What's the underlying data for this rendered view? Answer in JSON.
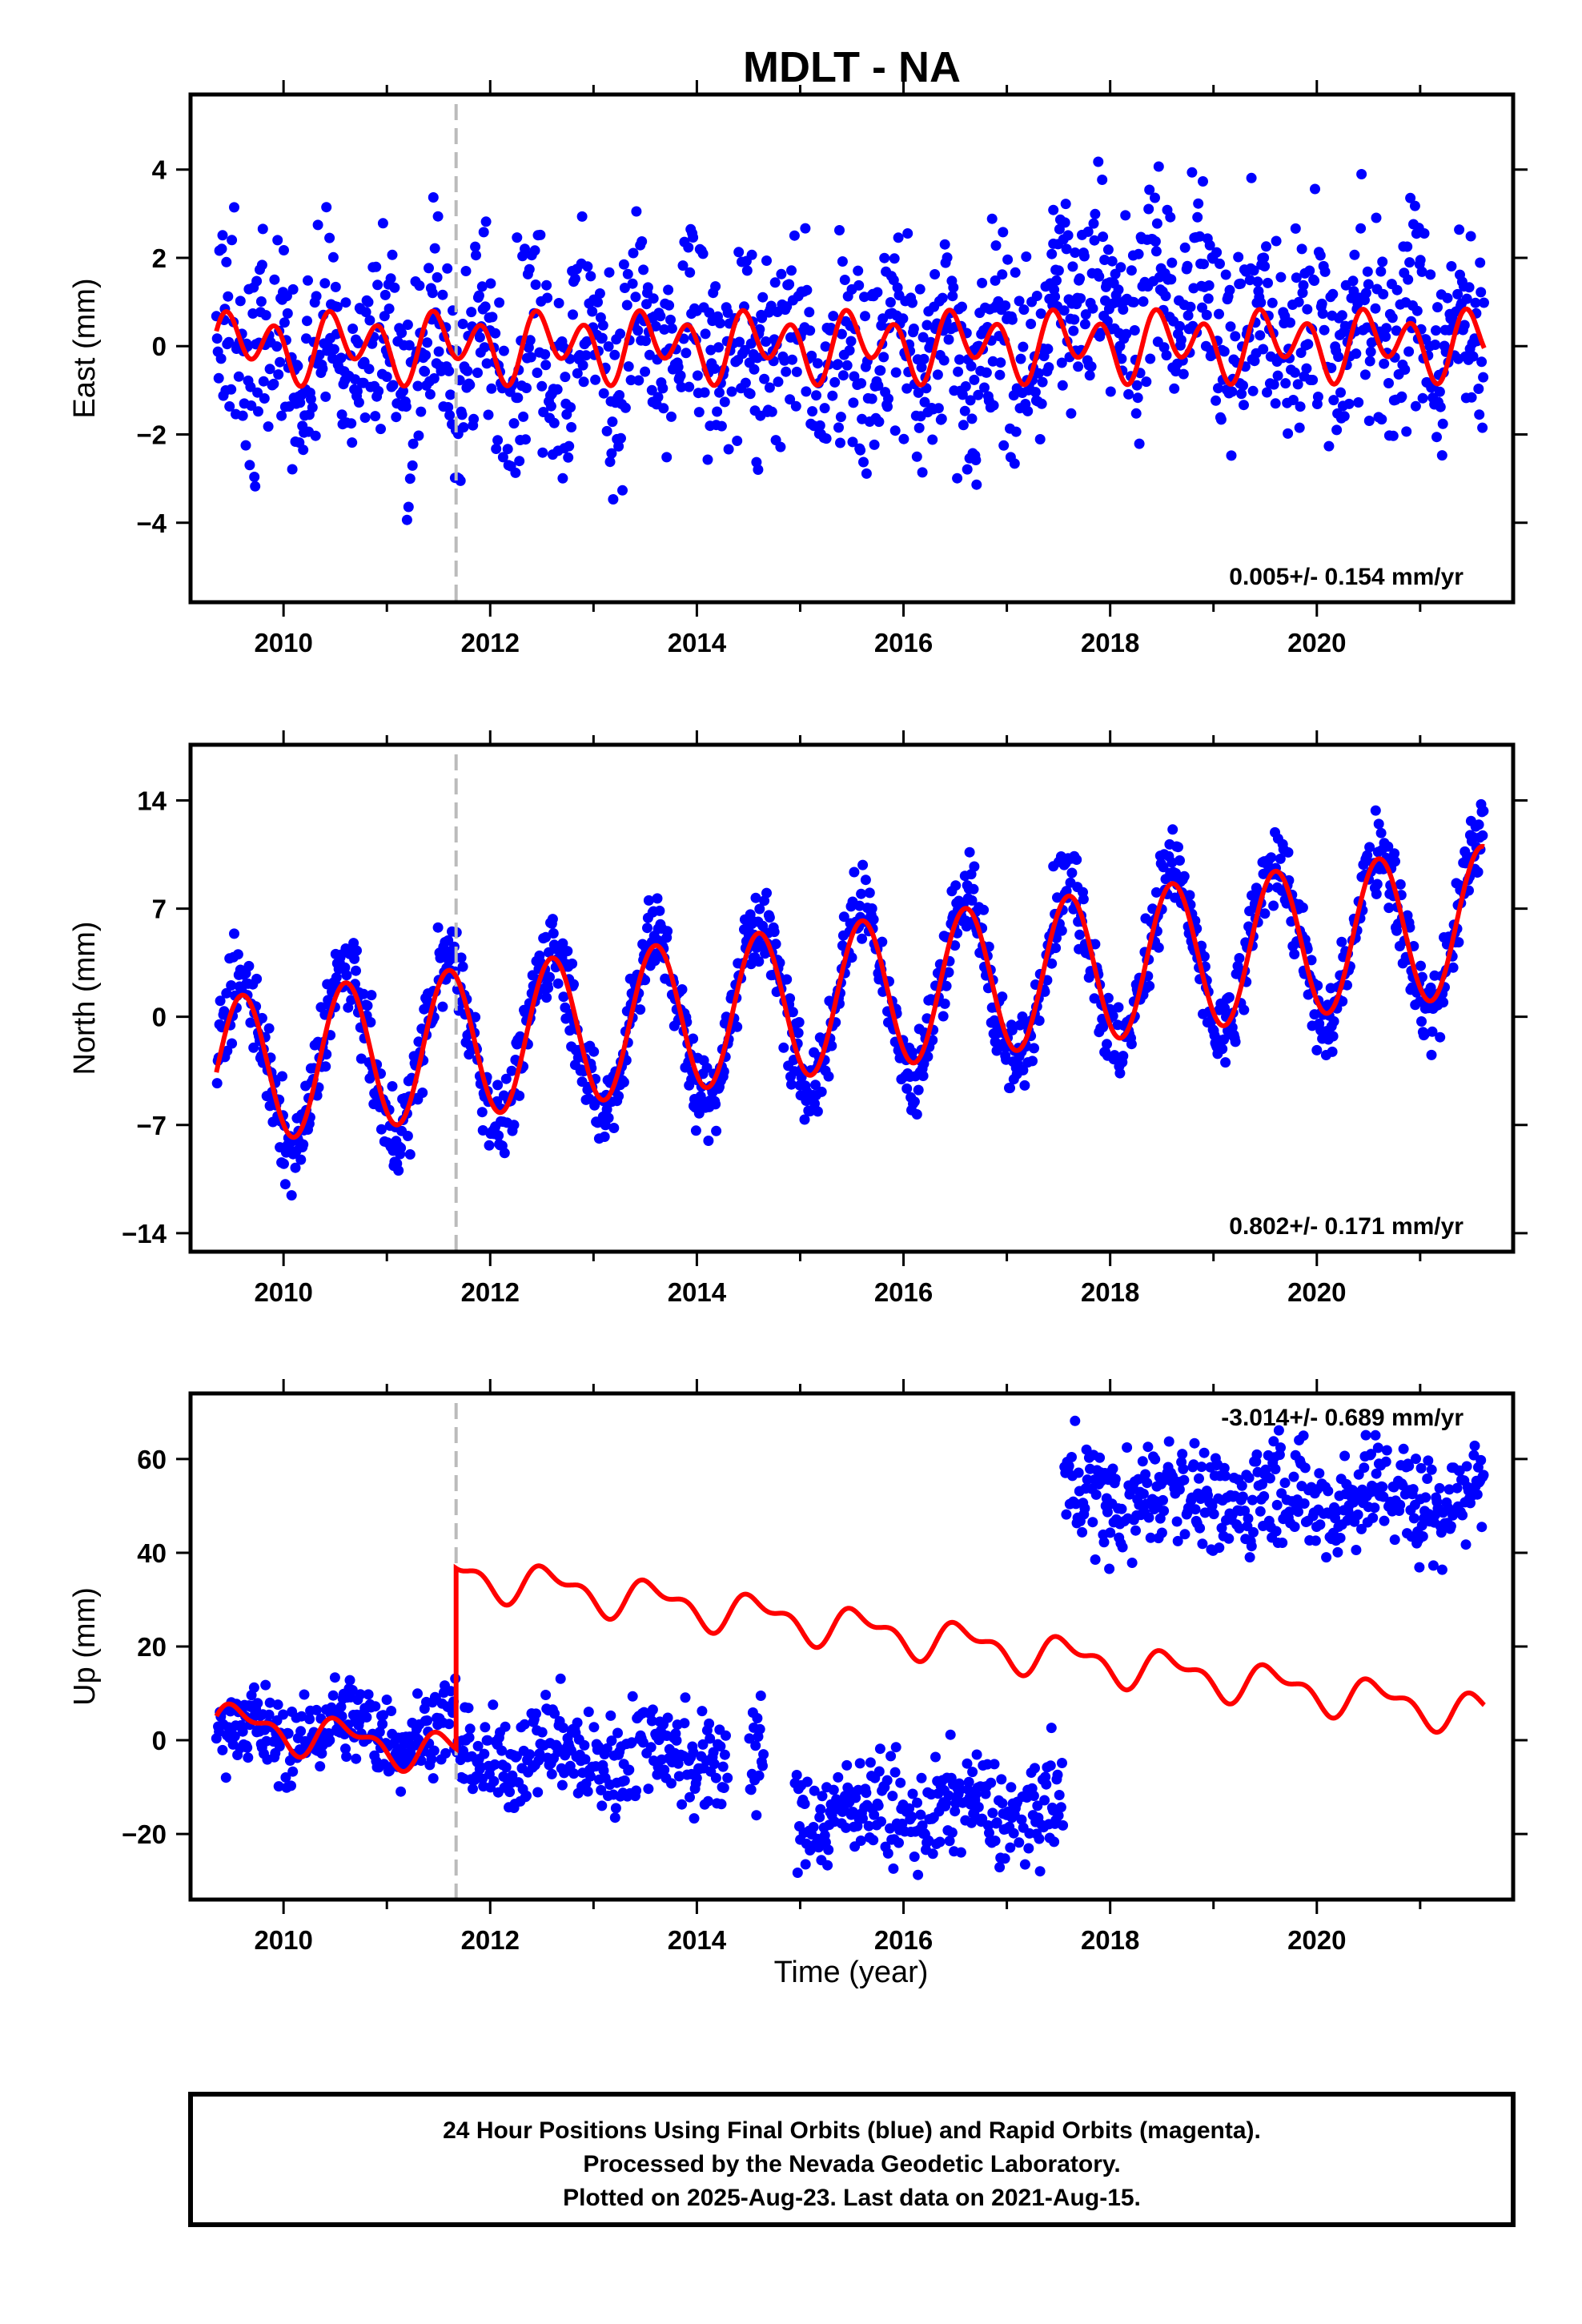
{
  "title": "MDLT - NA",
  "xlabel": "Time (year)",
  "footer": [
    "24 Hour Positions Using Final Orbits (blue) and Rapid Orbits (magenta).",
    "Processed by the Nevada Geodetic Laboratory.",
    "Plotted on 2025-Aug-23. Last data on 2021-Aug-15."
  ],
  "colors": {
    "data": "#0000ff",
    "model": "#ff0000",
    "event": "#bbbbbb",
    "frame": "#000000"
  },
  "chart_data": [
    {
      "type": "scatter",
      "name": "east",
      "ylabel": "East (mm)",
      "rate": "0.005+/- 0.154 mm/yr",
      "xlim": [
        2009.1,
        2021.9
      ],
      "ylim": [
        -5.8,
        5.7
      ],
      "xticks": [
        2010,
        2012,
        2014,
        2016,
        2018,
        2020
      ],
      "yticks": [
        -4,
        -2,
        0,
        2,
        4
      ],
      "event_year": 2011.67,
      "data_start": 2009.35,
      "data_end": 2021.62,
      "series": [
        {
          "label": "Final Orbits",
          "style": "blue dots",
          "segments": [
            {
              "from": 2009.35,
              "to": 2017.45,
              "mean": -0.1,
              "scatter": 1.25
            },
            {
              "from": 2017.45,
              "to": 2019.0,
              "mean": 1.2,
              "scatter": 1.2
            },
            {
              "from": 2019.0,
              "to": 2021.62,
              "mean": 0.4,
              "scatter": 1.2
            }
          ]
        },
        {
          "label": "Model",
          "style": "red line",
          "model": {
            "t0": 2009.35,
            "offset": 0.0,
            "rate": 0.005,
            "annual": 0.35,
            "semiannual": 0.6
          }
        }
      ]
    },
    {
      "type": "scatter",
      "name": "north",
      "ylabel": "North (mm)",
      "rate": "0.802+/- 0.171 mm/yr",
      "xlim": [
        2009.1,
        2021.9
      ],
      "ylim": [
        -15.2,
        17.6
      ],
      "xticks": [
        2010,
        2012,
        2014,
        2016,
        2018,
        2020
      ],
      "yticks": [
        -14,
        -7,
        0,
        7,
        14
      ],
      "event_year": 2011.67,
      "data_start": 2009.35,
      "data_end": 2021.62,
      "series": [
        {
          "label": "Final Orbits",
          "style": "blue dots",
          "segments": [
            {
              "from": 2009.35,
              "to": 2021.62,
              "mean": 0,
              "scatter": 1.4
            }
          ]
        },
        {
          "label": "Model",
          "style": "red line",
          "model": {
            "t0": 2009.35,
            "offset": -3.6,
            "rate": 0.802,
            "annual": 4.8,
            "semiannual": 0
          }
        }
      ]
    },
    {
      "type": "scatter",
      "name": "up",
      "ylabel": "Up (mm)",
      "rate": "-3.014+/- 0.689 mm/yr",
      "xlim": [
        2009.1,
        2021.9
      ],
      "ylim": [
        -34,
        74
      ],
      "xticks": [
        2010,
        2012,
        2014,
        2016,
        2018,
        2020
      ],
      "yticks": [
        -20,
        0,
        20,
        40,
        60
      ],
      "event_year": 2011.67,
      "data_start": 2009.35,
      "data_end": 2021.62,
      "series": [
        {
          "label": "Final Orbits",
          "style": "blue dots",
          "segments": [
            {
              "from": 2009.35,
              "to": 2011.67,
              "mean": 2,
              "scatter": 4.5
            },
            {
              "from": 2011.67,
              "to": 2014.3,
              "mean": -3,
              "scatter": 5.5
            },
            {
              "from": 2014.5,
              "to": 2014.65,
              "mean": -5,
              "scatter": 6
            },
            {
              "from": 2014.95,
              "to": 2017.55,
              "mean": -15,
              "scatter": 5.5
            },
            {
              "from": 2017.55,
              "to": 2021.62,
              "mean": 52,
              "scatter": 6
            }
          ]
        },
        {
          "label": "Model",
          "style": "red line",
          "model": {
            "t0": 2009.35,
            "offset": 4.0,
            "rate": -3.014,
            "annual": 3.5,
            "semiannual": 2.0,
            "step_at": 2011.67,
            "step": 38.5
          }
        }
      ]
    }
  ]
}
